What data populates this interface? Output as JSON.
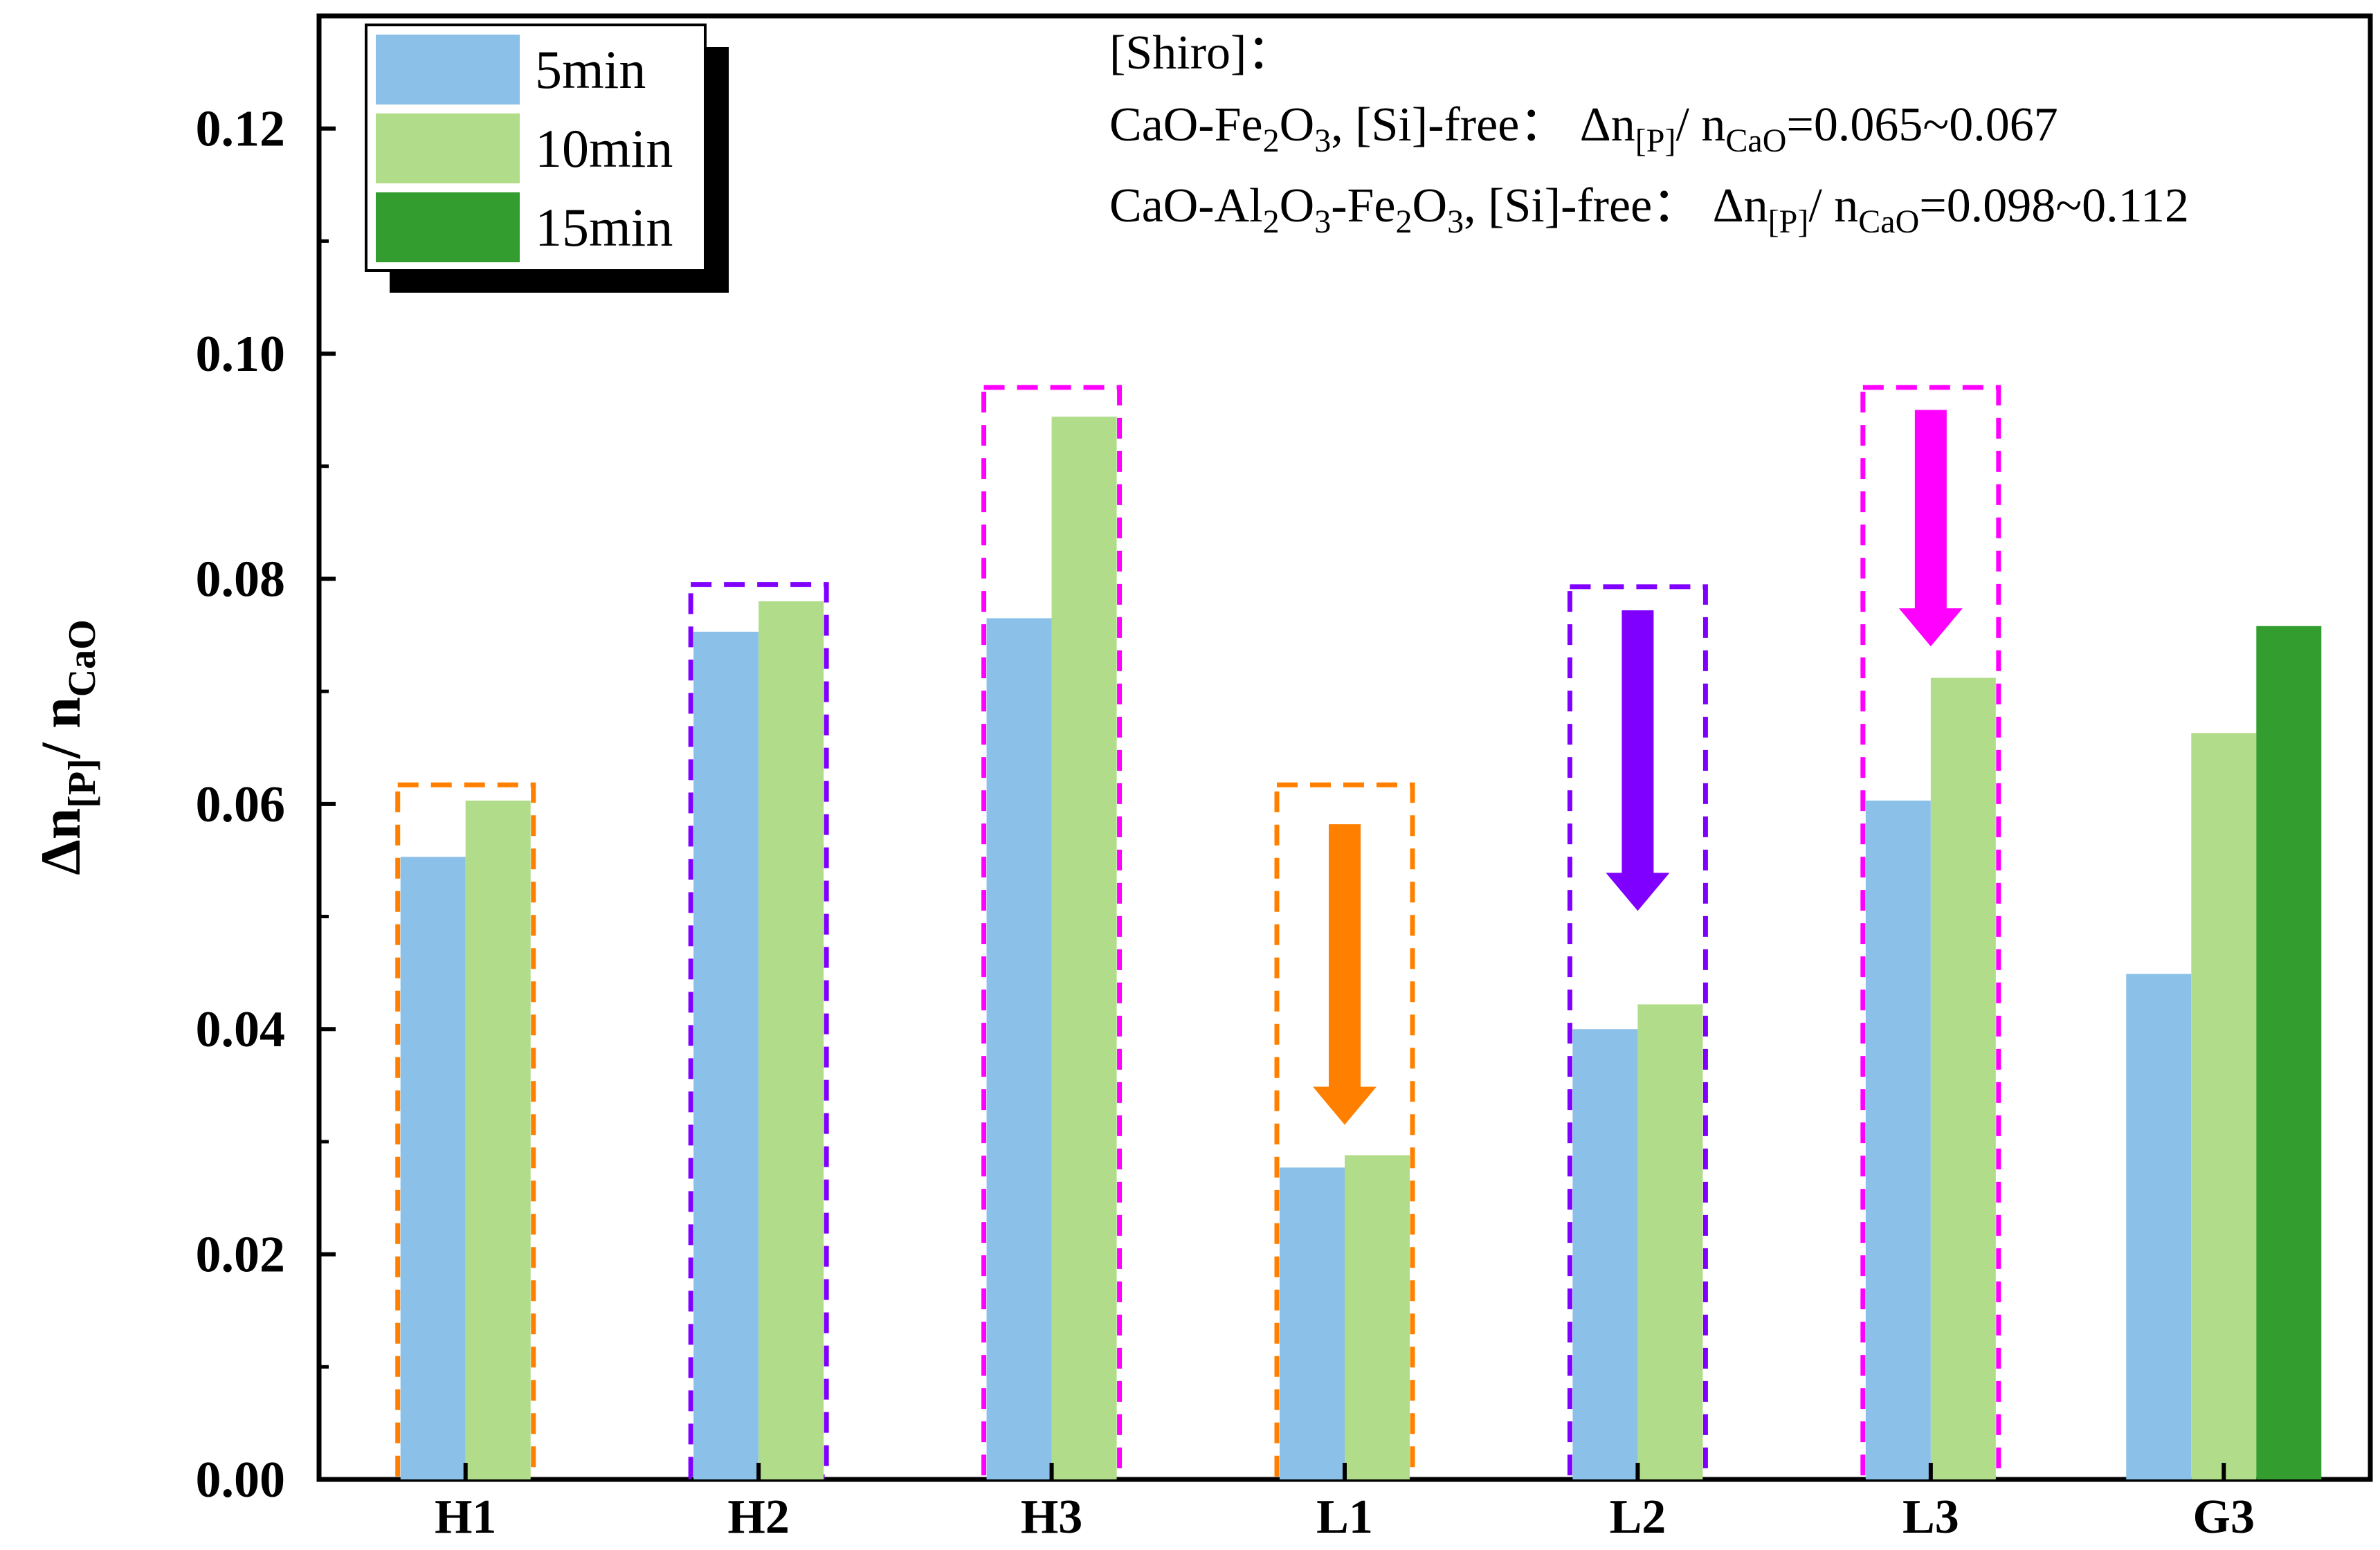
{
  "chart_data": {
    "type": "bar",
    "title": "",
    "xlabel": "",
    "ylabel": {
      "main": "Δn",
      "sub1": "[P]",
      "mid": "/ n",
      "sub2": "CaO"
    },
    "ylim": [
      0,
      0.13
    ],
    "yticks": [
      "0.00",
      "0.02",
      "0.04",
      "0.06",
      "0.08",
      "0.10",
      "0.12"
    ],
    "categories": [
      "H1",
      "H2",
      "H3",
      "L1",
      "L2",
      "L3",
      "G3"
    ],
    "series": [
      {
        "name": "5min",
        "color": "#8bc0e8",
        "values": [
          0.0553,
          0.0753,
          0.0765,
          0.0277,
          0.04,
          0.0603,
          0.0449
        ]
      },
      {
        "name": "10min",
        "color": "#b1dd8a",
        "values": [
          0.0603,
          0.078,
          0.0944,
          0.0288,
          0.0422,
          0.0712,
          0.0663
        ]
      },
      {
        "name": "15min",
        "color": "#339e2f",
        "values": [
          null,
          null,
          null,
          null,
          null,
          null,
          0.0758
        ]
      }
    ],
    "groups": [
      {
        "category": "H1",
        "color": "#ff8000",
        "top": 0.0617
      },
      {
        "category": "H2",
        "color": "#8000ff",
        "top": 0.0795
      },
      {
        "category": "H3",
        "color": "#ff00ff",
        "top": 0.097
      },
      {
        "category": "L1",
        "color": "#ff8000",
        "top": 0.0617
      },
      {
        "category": "L2",
        "color": "#8000ff",
        "top": 0.0793
      },
      {
        "category": "L3",
        "color": "#ff00ff",
        "top": 0.097
      }
    ],
    "arrows": [
      {
        "category": "L1",
        "color": "#ff8000",
        "from": 0.0582,
        "to": 0.0315
      },
      {
        "category": "L2",
        "color": "#8000ff",
        "from": 0.0772,
        "to": 0.0505
      },
      {
        "category": "L3",
        "color": "#ff00ff",
        "from": 0.095,
        "to": 0.074
      }
    ],
    "legend_position": "top-left",
    "annotation": {
      "header": "[Shiro]：",
      "line1": {
        "compound_parts": [
          "CaO-Fe",
          "2",
          "O",
          "3",
          ", [Si]-free：  Δn"
        ],
        "sub_p": "[P]",
        "mid": "/ n",
        "sub_cao": "CaO",
        "range": "=0.065~0.067"
      },
      "line2": {
        "compound_parts": [
          "CaO-Al",
          "2",
          "O",
          "3",
          "-Fe",
          "2",
          "O",
          "3",
          ", [Si]-free：  Δn"
        ],
        "sub_p": "[P]",
        "mid": "/ n",
        "sub_cao": "CaO",
        "range": "=0.098~0.112"
      }
    }
  }
}
